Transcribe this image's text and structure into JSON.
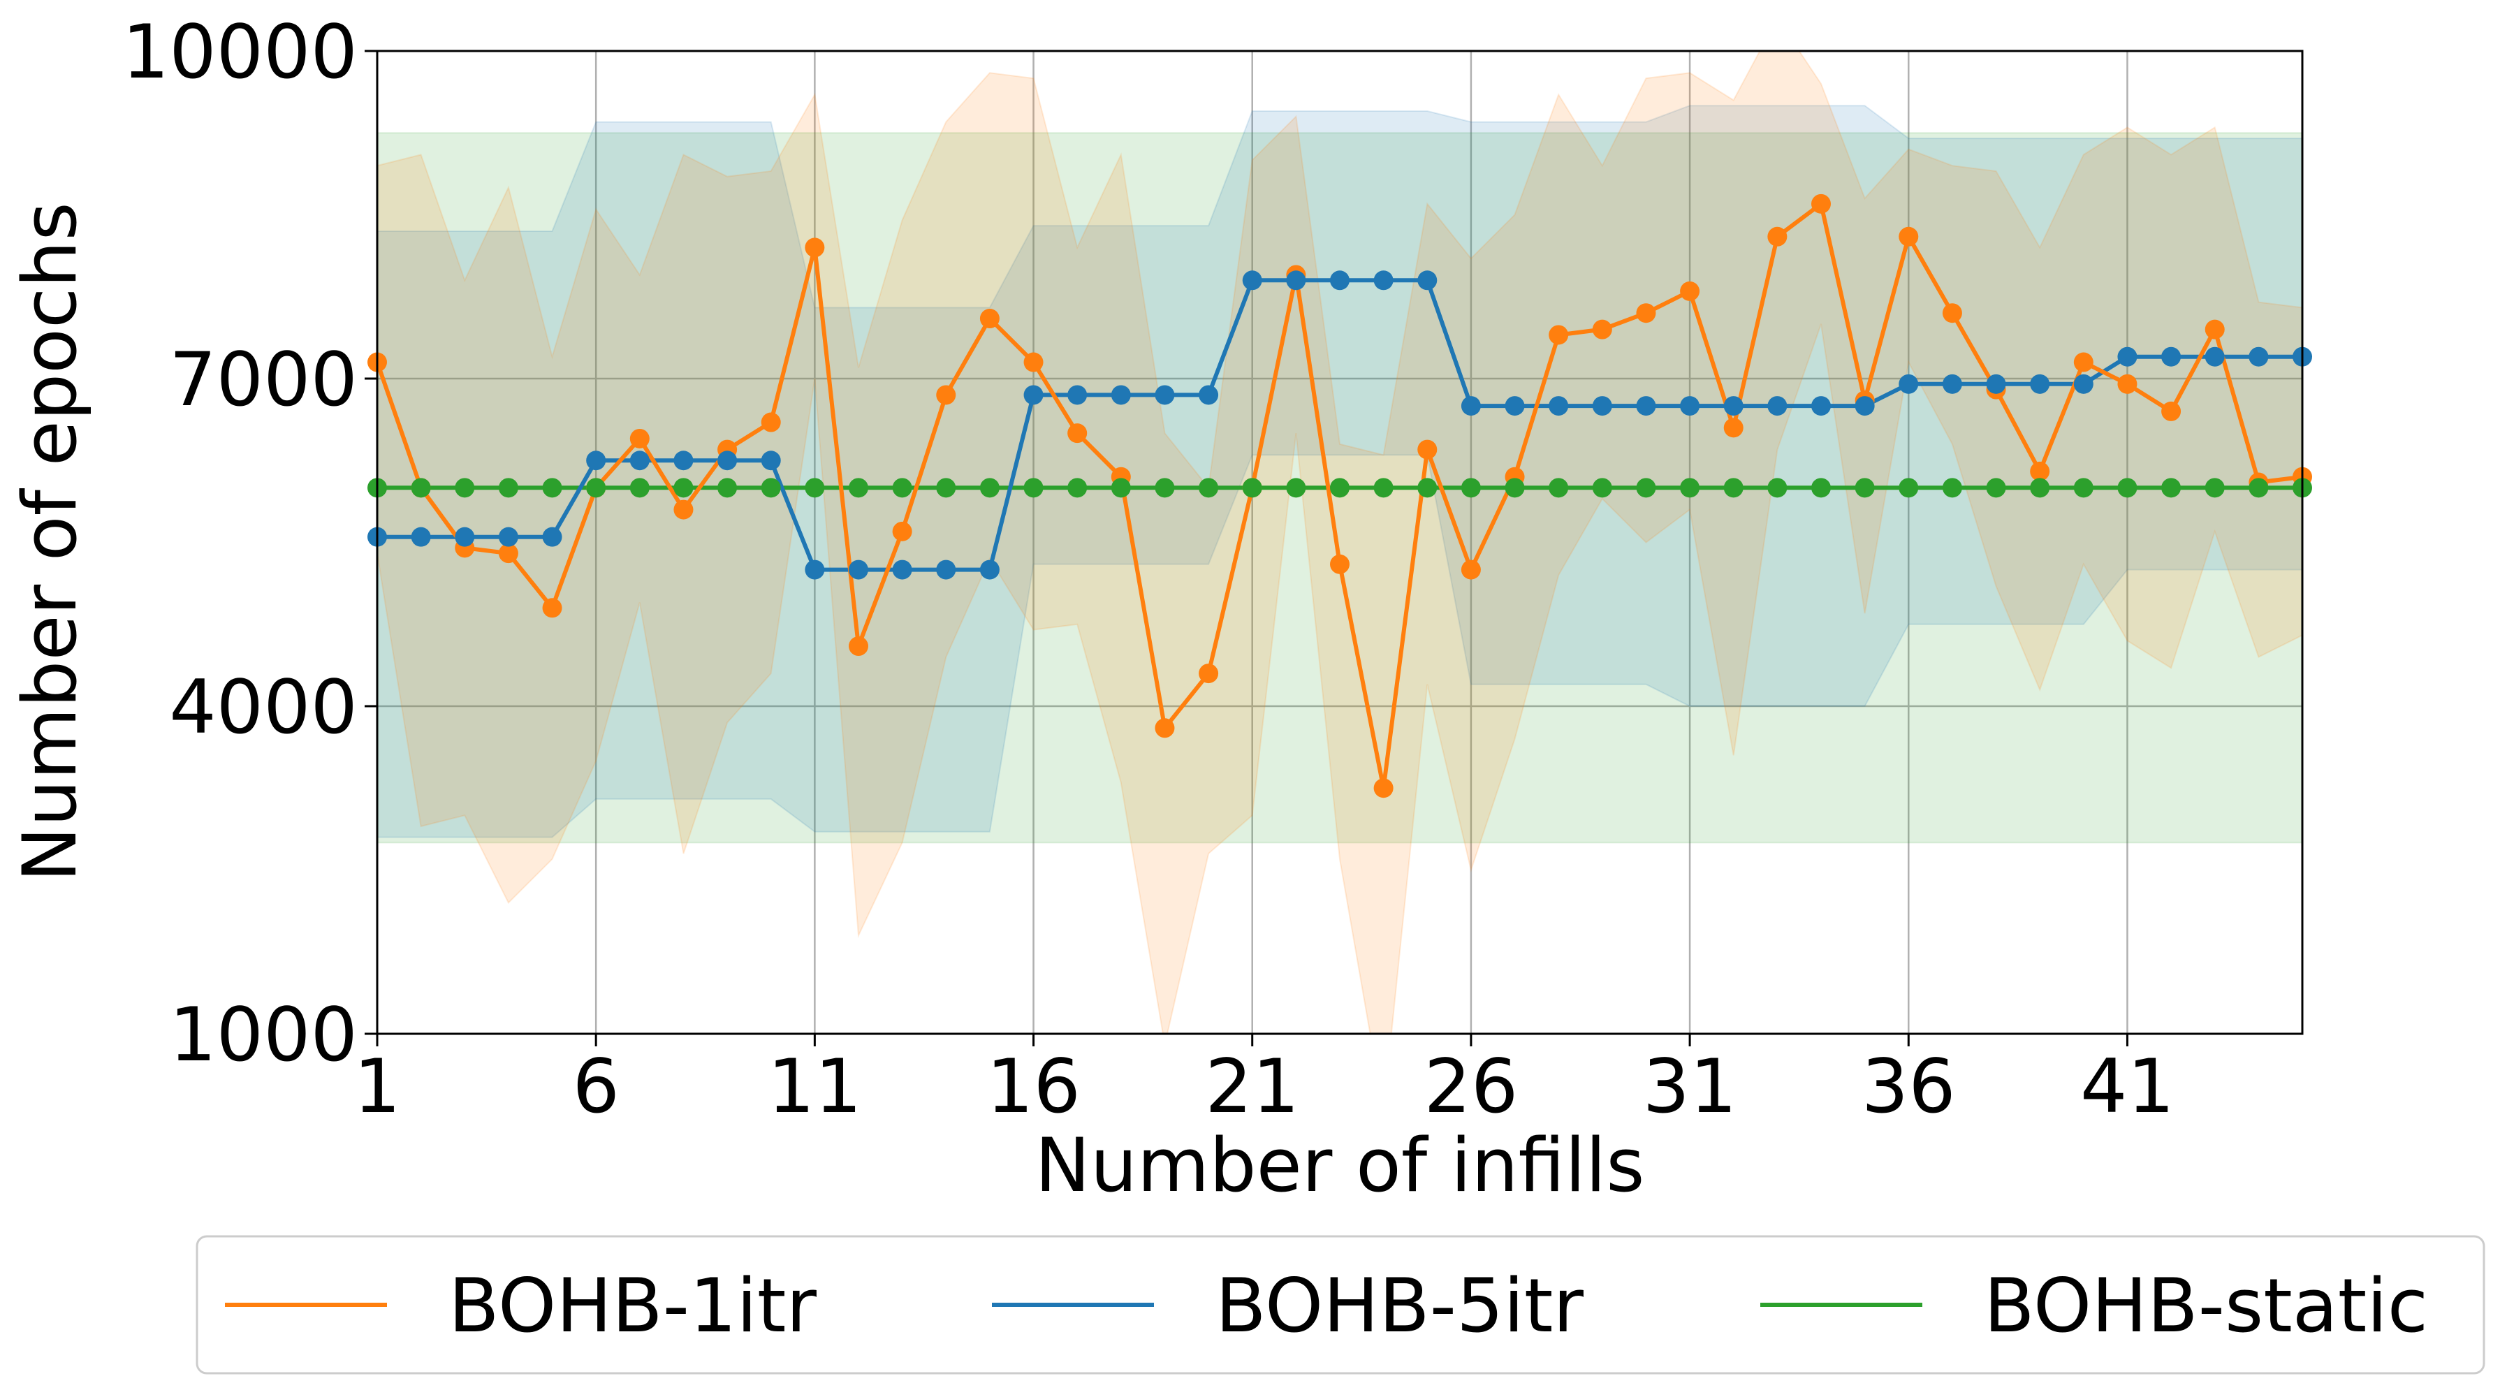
{
  "chart_data": {
    "type": "line",
    "xlabel": "Number of infills",
    "ylabel": "Number of epochs",
    "xlim": [
      1,
      45
    ],
    "ylim": [
      1000,
      10000
    ],
    "xticks": [
      1,
      6,
      11,
      16,
      21,
      26,
      31,
      36,
      41
    ],
    "xtick_labels": [
      "1",
      "6",
      "11",
      "16",
      "21",
      "26",
      "31",
      "36",
      "41"
    ],
    "yticks": [
      1000,
      4000,
      7000,
      10000
    ],
    "ytick_labels": [
      "1000",
      "4000",
      "7000",
      "10000"
    ],
    "grid": true,
    "legend_position": "bottom-center",
    "x": [
      1,
      2,
      3,
      4,
      5,
      6,
      7,
      8,
      9,
      10,
      11,
      12,
      13,
      14,
      15,
      16,
      17,
      18,
      19,
      20,
      21,
      22,
      23,
      24,
      25,
      26,
      27,
      28,
      29,
      30,
      31,
      32,
      33,
      34,
      35,
      36,
      37,
      38,
      39,
      40,
      41,
      42,
      43,
      44,
      45
    ],
    "series": [
      {
        "name": "BOHB-1itr",
        "color": "#ff7f0e",
        "values": [
          7150,
          6000,
          5450,
          5400,
          4900,
          6000,
          6450,
          5800,
          6350,
          6600,
          8200,
          4550,
          5600,
          6850,
          7550,
          7150,
          6500,
          6100,
          3800,
          4300,
          6000,
          7950,
          5300,
          3250,
          6350,
          5250,
          6100,
          7400,
          7450,
          7600,
          7800,
          6550,
          8300,
          8600,
          6800,
          8300,
          7600,
          6900,
          6150,
          7150,
          6950,
          6700,
          7450,
          6050,
          6100
        ],
        "band_upper": [
          8950,
          9050,
          7900,
          8750,
          7200,
          8550,
          7950,
          9050,
          8850,
          8900,
          9600,
          7100,
          8450,
          9350,
          9800,
          9750,
          8200,
          9050,
          6500,
          6000,
          9000,
          9400,
          6400,
          6300,
          8600,
          8100,
          8500,
          9600,
          8950,
          9750,
          9800,
          9550,
          10300,
          9700,
          8650,
          9100,
          8950,
          8900,
          8200,
          9050,
          9300,
          9050,
          9300,
          7700,
          7650
        ],
        "band_lower": [
          5400,
          2900,
          3000,
          2200,
          2600,
          3500,
          4950,
          2650,
          3850,
          4300,
          7000,
          1900,
          2750,
          4450,
          5350,
          4700,
          4750,
          3300,
          900,
          2650,
          3000,
          6500,
          2600,
          300,
          4200,
          2500,
          3700,
          5200,
          5900,
          5500,
          5800,
          3550,
          6350,
          7500,
          4850,
          7150,
          6400,
          5100,
          4150,
          5300,
          4600,
          4350,
          5600,
          4450,
          4650
        ]
      },
      {
        "name": "BOHB-5itr",
        "color": "#1f77b4",
        "values": [
          5550,
          5550,
          5550,
          5550,
          5550,
          6250,
          6250,
          6250,
          6250,
          6250,
          5250,
          5250,
          5250,
          5250,
          5250,
          6850,
          6850,
          6850,
          6850,
          6850,
          7900,
          7900,
          7900,
          7900,
          7900,
          6750,
          6750,
          6750,
          6750,
          6750,
          6750,
          6750,
          6750,
          6750,
          6750,
          6950,
          6950,
          6950,
          6950,
          6950,
          7200,
          7200,
          7200,
          7200,
          7200
        ],
        "band_upper": [
          8350,
          8350,
          8350,
          8350,
          8350,
          9350,
          9350,
          9350,
          9350,
          9350,
          7650,
          7650,
          7650,
          7650,
          7650,
          8400,
          8400,
          8400,
          8400,
          8400,
          9450,
          9450,
          9450,
          9450,
          9450,
          9350,
          9350,
          9350,
          9350,
          9350,
          9500,
          9500,
          9500,
          9500,
          9500,
          9200,
          9200,
          9200,
          9200,
          9200,
          9200,
          9200,
          9200,
          9200,
          9200
        ],
        "band_lower": [
          2800,
          2800,
          2800,
          2800,
          2800,
          3150,
          3150,
          3150,
          3150,
          3150,
          2850,
          2850,
          2850,
          2850,
          2850,
          5300,
          5300,
          5300,
          5300,
          5300,
          6300,
          6300,
          6300,
          6300,
          6300,
          4200,
          4200,
          4200,
          4200,
          4200,
          4000,
          4000,
          4000,
          4000,
          4000,
          4750,
          4750,
          4750,
          4750,
          4750,
          5250,
          5250,
          5250,
          5250,
          5250
        ]
      },
      {
        "name": "BOHB-static",
        "color": "#2ca02c",
        "values": [
          6000,
          6000,
          6000,
          6000,
          6000,
          6000,
          6000,
          6000,
          6000,
          6000,
          6000,
          6000,
          6000,
          6000,
          6000,
          6000,
          6000,
          6000,
          6000,
          6000,
          6000,
          6000,
          6000,
          6000,
          6000,
          6000,
          6000,
          6000,
          6000,
          6000,
          6000,
          6000,
          6000,
          6000,
          6000,
          6000,
          6000,
          6000,
          6000,
          6000,
          6000,
          6000,
          6000,
          6000,
          6000
        ],
        "band_upper": [
          9250,
          9250,
          9250,
          9250,
          9250,
          9250,
          9250,
          9250,
          9250,
          9250,
          9250,
          9250,
          9250,
          9250,
          9250,
          9250,
          9250,
          9250,
          9250,
          9250,
          9250,
          9250,
          9250,
          9250,
          9250,
          9250,
          9250,
          9250,
          9250,
          9250,
          9250,
          9250,
          9250,
          9250,
          9250,
          9250,
          9250,
          9250,
          9250,
          9250,
          9250,
          9250,
          9250,
          9250,
          9250
        ],
        "band_lower": [
          2750,
          2750,
          2750,
          2750,
          2750,
          2750,
          2750,
          2750,
          2750,
          2750,
          2750,
          2750,
          2750,
          2750,
          2750,
          2750,
          2750,
          2750,
          2750,
          2750,
          2750,
          2750,
          2750,
          2750,
          2750,
          2750,
          2750,
          2750,
          2750,
          2750,
          2750,
          2750,
          2750,
          2750,
          2750,
          2750,
          2750,
          2750,
          2750,
          2750,
          2750,
          2750,
          2750,
          2750,
          2750
        ]
      }
    ]
  }
}
